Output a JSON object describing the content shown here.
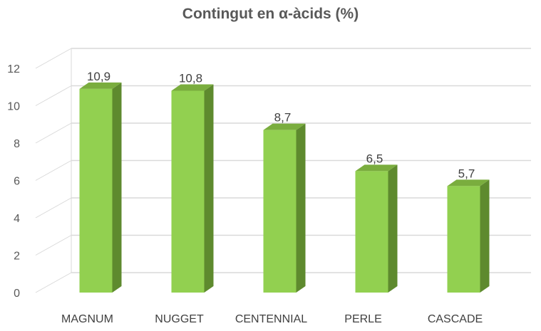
{
  "chart_data": {
    "type": "bar",
    "title": "Contingut en α-àcids (%)",
    "categories": [
      "MAGNUM",
      "NUGGET",
      "CENTENNIAL",
      "PERLE",
      "CASCADE"
    ],
    "values": [
      10.9,
      10.8,
      8.7,
      6.5,
      5.7
    ],
    "value_labels": [
      "10,9",
      "10,8",
      "8,7",
      "6,5",
      "5,7"
    ],
    "y_ticks": [
      "0",
      "2",
      "4",
      "6",
      "8",
      "10",
      "12"
    ],
    "ylim": [
      0,
      12
    ],
    "grid": true,
    "legend": "none",
    "style": "3d-column",
    "colors": {
      "bar_front": "#92d050",
      "bar_side": "#5e8a2e",
      "bar_top": "#7aad3e",
      "grid": "#d9d9d9",
      "text": "#595959"
    }
  }
}
